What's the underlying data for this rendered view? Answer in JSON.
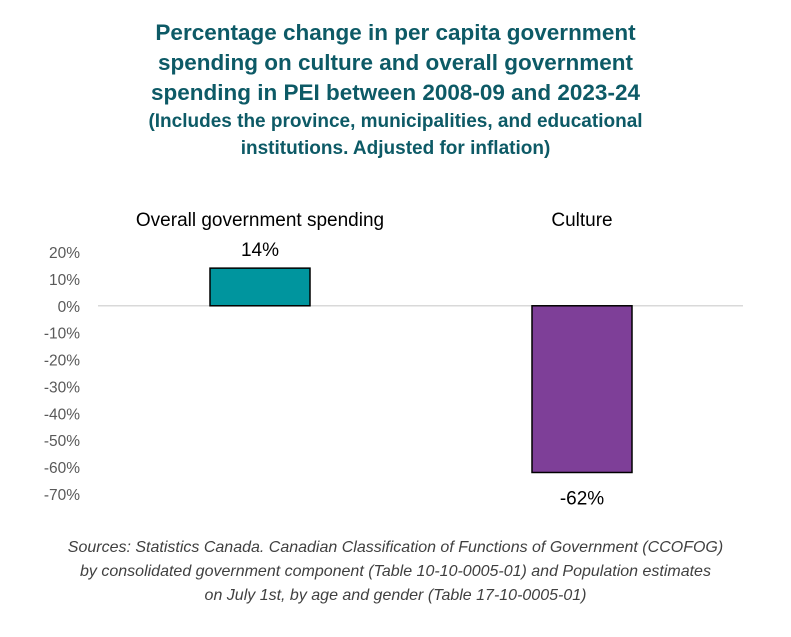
{
  "chart_data": {
    "type": "bar",
    "title_lines": [
      "Percentage change in per capita government",
      "spending on culture and overall government",
      "spending in PEI between 2008-09 and 2023-24"
    ],
    "subtitle_lines": [
      "(Includes the province, municipalities, and educational",
      "institutions. Adjusted for inflation)"
    ],
    "categories": [
      "Overall government spending",
      "Culture"
    ],
    "values": [
      14,
      -62
    ],
    "data_labels": [
      "14%",
      "-62%"
    ],
    "bar_colors": [
      "#00959e",
      "#7e3f98"
    ],
    "yticks": [
      20,
      10,
      0,
      -10,
      -20,
      -30,
      -40,
      -50,
      -60,
      -70
    ],
    "ytick_labels": [
      "20%",
      "10%",
      "0%",
      "-10%",
      "-20%",
      "-30%",
      "-40%",
      "-50%",
      "-60%",
      "-70%"
    ],
    "ylim": [
      -70,
      20
    ],
    "grid": false,
    "legend": "none"
  },
  "source_lines": [
    "Sources: Statistics Canada. Canadian Classification of Functions of Government (CCOFOG)",
    "by consolidated government component (Table 10-10-0005-01) and Population estimates",
    "on July 1st, by age and gender (Table 17-10-0005-01)"
  ]
}
